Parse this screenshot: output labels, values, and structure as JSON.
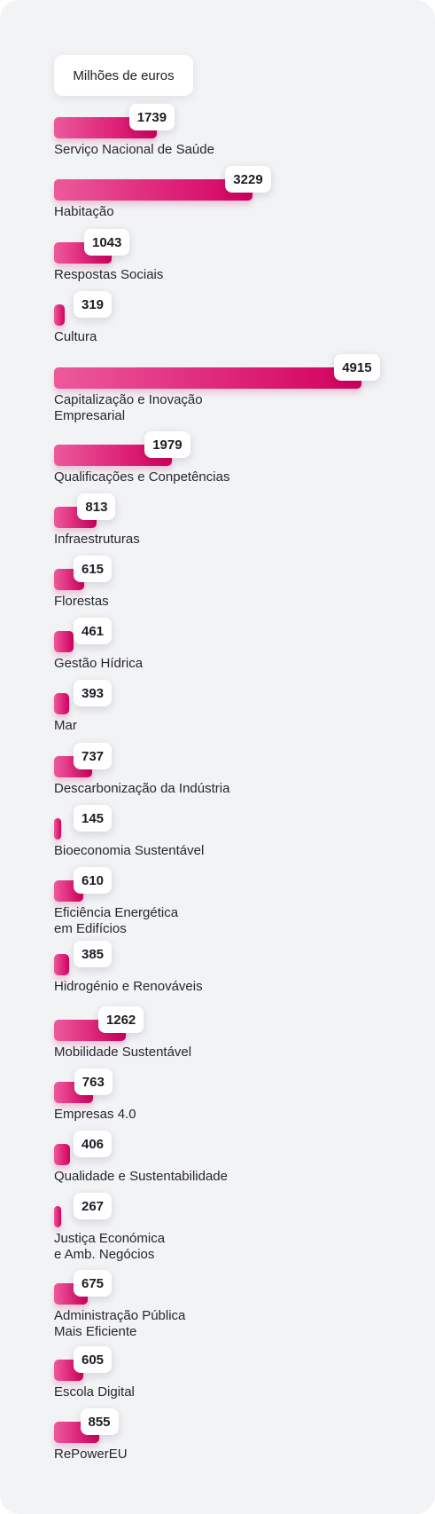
{
  "chart_data": {
    "type": "bar",
    "orientation": "horizontal",
    "unit_label": "Milhões de euros",
    "bar_color_start": "#ec5a9b",
    "bar_color_end": "#d3005e",
    "categories": [
      "Serviço Nacional de Saúde",
      "Habitação",
      "Respostas Sociais",
      "Cultura",
      "Capitalização e Inovação\nEmpresarial",
      "Qualificações e Conpetências",
      "Infraestruturas",
      "Florestas",
      "Gestão Hídrica",
      "Mar",
      "Descarbonização da Indústria",
      "Bioeconomia Sustentável",
      "Eficiência Energética\nem Edifícios",
      "Hidrogénio e Renováveis",
      "Mobilidade Sustentável",
      "Empresas 4.0",
      "Qualidade e Sustentabilidade",
      "Justiça  Económica\ne Amb. Negócios",
      "Administração Pública\nMais Eficiente",
      "Escola Digital",
      "RePowerEU"
    ],
    "values": [
      1739,
      3229,
      1043,
      319,
      4915,
      1979,
      813,
      615,
      461,
      393,
      737,
      145,
      610,
      385,
      1262,
      763,
      406,
      267,
      675,
      605,
      855
    ]
  }
}
